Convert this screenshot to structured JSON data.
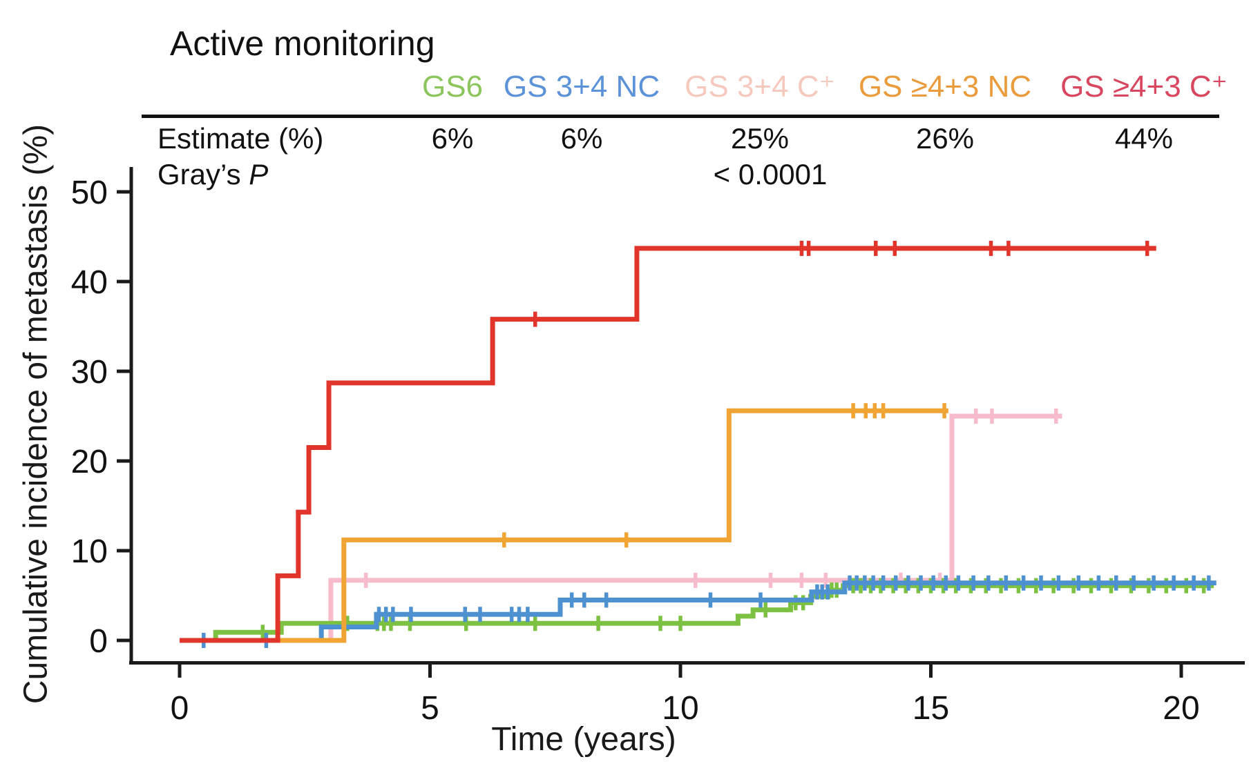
{
  "title": "Active monitoring",
  "table": {
    "row_estimate_label": "Estimate (%)",
    "row_p_label": "Gray’s ",
    "row_p_symbol": "P",
    "p_value": "< 0.0001",
    "columns": [
      {
        "label": "GS6",
        "estimate": "6%",
        "color": "#8cc55c"
      },
      {
        "label": "GS 3+4 NC",
        "estimate": "6%",
        "color": "#5b92d8"
      },
      {
        "label": "GS 3+4 C⁺",
        "estimate": "25%",
        "color": "#f6c9bf"
      },
      {
        "label": "GS ≥4+3 NC",
        "estimate": "26%",
        "color": "#ea9c3d"
      },
      {
        "label": "GS ≥4+3 C⁺",
        "estimate": "44%",
        "color": "#d8465f"
      }
    ]
  },
  "axes": {
    "x_label": "Time (years)",
    "y_label": "Cumulative incidence of metastasis (%)",
    "x_ticks": [
      0,
      5,
      10,
      15,
      20
    ],
    "y_ticks": [
      0,
      10,
      20,
      30,
      40,
      50
    ]
  },
  "chart_data": {
    "type": "line",
    "subtype": "step-cumulative-incidence",
    "title": "Active monitoring",
    "xlabel": "Time (years)",
    "ylabel": "Cumulative incidence of metastasis (%)",
    "x_range": [
      0,
      21
    ],
    "y_range": [
      0,
      52
    ],
    "grid": false,
    "grays_p": "< 0.0001",
    "series": [
      {
        "name": "GS 3+4 C+",
        "estimate_pct": 25,
        "color": "#f7bccb",
        "steps": [
          {
            "t": 0,
            "v": 0
          },
          {
            "t": 3.02,
            "v": 6.7
          },
          {
            "t": 15.42,
            "v": 25.0
          }
        ],
        "end_t": 17.62,
        "censor_ticks": [
          {
            "t": 3.72,
            "v": 6.7
          },
          {
            "t": 10.3,
            "v": 6.7
          },
          {
            "t": 11.8,
            "v": 6.7
          },
          {
            "t": 12.42,
            "v": 6.7
          },
          {
            "t": 12.9,
            "v": 6.7
          },
          {
            "t": 14.4,
            "v": 6.7
          },
          {
            "t": 15.18,
            "v": 6.7
          },
          {
            "t": 15.9,
            "v": 25.0
          },
          {
            "t": 16.22,
            "v": 25.0
          },
          {
            "t": 17.5,
            "v": 25.0
          }
        ]
      },
      {
        "name": "GS6",
        "estimate_pct": 6,
        "color": "#7cc142",
        "steps": [
          {
            "t": 0,
            "v": 0
          },
          {
            "t": 0.72,
            "v": 0.9
          },
          {
            "t": 2.03,
            "v": 1.9
          },
          {
            "t": 11.15,
            "v": 2.7
          },
          {
            "t": 11.45,
            "v": 3.4
          },
          {
            "t": 12.2,
            "v": 4.2
          },
          {
            "t": 12.6,
            "v": 4.9
          },
          {
            "t": 12.95,
            "v": 5.6
          },
          {
            "t": 13.25,
            "v": 6.1
          }
        ],
        "end_t": 20.65,
        "censor_ticks": [
          {
            "t": 1.66,
            "v": 0.9
          },
          {
            "t": 3.35,
            "v": 1.9
          },
          {
            "t": 3.95,
            "v": 1.9
          },
          {
            "t": 4.08,
            "v": 1.9
          },
          {
            "t": 4.22,
            "v": 1.9
          },
          {
            "t": 4.6,
            "v": 1.9
          },
          {
            "t": 5.72,
            "v": 1.9
          },
          {
            "t": 7.1,
            "v": 1.9
          },
          {
            "t": 8.36,
            "v": 1.9
          },
          {
            "t": 9.6,
            "v": 1.9
          },
          {
            "t": 10.0,
            "v": 1.9
          },
          {
            "t": 11.7,
            "v": 3.4
          },
          {
            "t": 12.3,
            "v": 4.2
          },
          {
            "t": 12.45,
            "v": 4.2
          },
          {
            "t": 13.02,
            "v": 5.6
          },
          {
            "t": 13.12,
            "v": 5.6
          },
          {
            "t": 13.45,
            "v": 6.1
          },
          {
            "t": 13.6,
            "v": 6.1
          },
          {
            "t": 13.8,
            "v": 6.1
          },
          {
            "t": 14.0,
            "v": 6.1
          },
          {
            "t": 14.25,
            "v": 6.1
          },
          {
            "t": 14.5,
            "v": 6.1
          },
          {
            "t": 14.75,
            "v": 6.1
          },
          {
            "t": 15.0,
            "v": 6.1
          },
          {
            "t": 15.25,
            "v": 6.1
          },
          {
            "t": 15.5,
            "v": 6.1
          },
          {
            "t": 15.8,
            "v": 6.1
          },
          {
            "t": 16.1,
            "v": 6.1
          },
          {
            "t": 16.4,
            "v": 6.1
          },
          {
            "t": 16.75,
            "v": 6.1
          },
          {
            "t": 17.1,
            "v": 6.1
          },
          {
            "t": 17.45,
            "v": 6.1
          },
          {
            "t": 17.85,
            "v": 6.1
          },
          {
            "t": 18.2,
            "v": 6.1
          },
          {
            "t": 18.6,
            "v": 6.1
          },
          {
            "t": 19.0,
            "v": 6.1
          },
          {
            "t": 19.35,
            "v": 6.1
          },
          {
            "t": 19.7,
            "v": 6.1
          },
          {
            "t": 20.1,
            "v": 6.1
          },
          {
            "t": 20.45,
            "v": 6.1
          }
        ]
      },
      {
        "name": "GS 3+4 NC",
        "estimate_pct": 6,
        "color": "#4e91d0",
        "steps": [
          {
            "t": 0,
            "v": 0
          },
          {
            "t": 2.83,
            "v": 1.5
          },
          {
            "t": 3.93,
            "v": 2.9
          },
          {
            "t": 7.6,
            "v": 4.5
          },
          {
            "t": 12.62,
            "v": 5.4
          },
          {
            "t": 13.28,
            "v": 6.4
          }
        ],
        "end_t": 20.7,
        "censor_ticks": [
          {
            "t": 0.48,
            "v": 0
          },
          {
            "t": 1.73,
            "v": 0
          },
          {
            "t": 3.98,
            "v": 2.9
          },
          {
            "t": 4.12,
            "v": 2.9
          },
          {
            "t": 4.26,
            "v": 2.9
          },
          {
            "t": 4.62,
            "v": 2.9
          },
          {
            "t": 5.7,
            "v": 2.9
          },
          {
            "t": 6.0,
            "v": 2.9
          },
          {
            "t": 6.63,
            "v": 2.9
          },
          {
            "t": 6.78,
            "v": 2.9
          },
          {
            "t": 6.95,
            "v": 2.9
          },
          {
            "t": 7.83,
            "v": 4.5
          },
          {
            "t": 8.08,
            "v": 4.5
          },
          {
            "t": 8.52,
            "v": 4.5
          },
          {
            "t": 10.6,
            "v": 4.5
          },
          {
            "t": 11.6,
            "v": 4.5
          },
          {
            "t": 12.73,
            "v": 5.4
          },
          {
            "t": 12.83,
            "v": 5.4
          },
          {
            "t": 12.94,
            "v": 5.4
          },
          {
            "t": 13.38,
            "v": 6.4
          },
          {
            "t": 13.52,
            "v": 6.4
          },
          {
            "t": 13.68,
            "v": 6.4
          },
          {
            "t": 13.85,
            "v": 6.4
          },
          {
            "t": 14.05,
            "v": 6.4
          },
          {
            "t": 14.3,
            "v": 6.4
          },
          {
            "t": 14.55,
            "v": 6.4
          },
          {
            "t": 14.8,
            "v": 6.4
          },
          {
            "t": 15.05,
            "v": 6.4
          },
          {
            "t": 15.3,
            "v": 6.4
          },
          {
            "t": 15.55,
            "v": 6.4
          },
          {
            "t": 15.85,
            "v": 6.4
          },
          {
            "t": 16.15,
            "v": 6.4
          },
          {
            "t": 16.5,
            "v": 6.4
          },
          {
            "t": 16.85,
            "v": 6.4
          },
          {
            "t": 17.2,
            "v": 6.4
          },
          {
            "t": 17.55,
            "v": 6.4
          },
          {
            "t": 17.95,
            "v": 6.4
          },
          {
            "t": 18.35,
            "v": 6.4
          },
          {
            "t": 18.7,
            "v": 6.4
          },
          {
            "t": 19.05,
            "v": 6.4
          },
          {
            "t": 19.45,
            "v": 6.4
          },
          {
            "t": 19.85,
            "v": 6.4
          },
          {
            "t": 20.25,
            "v": 6.4
          },
          {
            "t": 20.55,
            "v": 6.4
          }
        ]
      },
      {
        "name": "GS ≥4+3 NC",
        "estimate_pct": 26,
        "color": "#f0a433",
        "steps": [
          {
            "t": 0,
            "v": 0
          },
          {
            "t": 3.28,
            "v": 11.2
          },
          {
            "t": 10.97,
            "v": 25.6
          }
        ],
        "end_t": 15.35,
        "censor_ticks": [
          {
            "t": 6.48,
            "v": 11.2
          },
          {
            "t": 8.92,
            "v": 11.2
          },
          {
            "t": 13.45,
            "v": 25.6
          },
          {
            "t": 13.7,
            "v": 25.6
          },
          {
            "t": 13.88,
            "v": 25.6
          },
          {
            "t": 14.05,
            "v": 25.6
          },
          {
            "t": 15.27,
            "v": 25.6
          }
        ]
      },
      {
        "name": "GS ≥4+3 C+",
        "estimate_pct": 44,
        "color": "#e1352b",
        "steps": [
          {
            "t": 0,
            "v": 0
          },
          {
            "t": 1.96,
            "v": 7.2
          },
          {
            "t": 2.37,
            "v": 14.3
          },
          {
            "t": 2.58,
            "v": 21.5
          },
          {
            "t": 2.98,
            "v": 28.7
          },
          {
            "t": 6.25,
            "v": 35.8
          },
          {
            "t": 9.13,
            "v": 43.7
          }
        ],
        "end_t": 19.5,
        "censor_ticks": [
          {
            "t": 7.1,
            "v": 35.8
          },
          {
            "t": 12.42,
            "v": 43.7
          },
          {
            "t": 12.56,
            "v": 43.7
          },
          {
            "t": 13.9,
            "v": 43.7
          },
          {
            "t": 14.28,
            "v": 43.7
          },
          {
            "t": 16.2,
            "v": 43.7
          },
          {
            "t": 16.55,
            "v": 43.7
          },
          {
            "t": 19.32,
            "v": 43.7
          }
        ]
      }
    ]
  }
}
